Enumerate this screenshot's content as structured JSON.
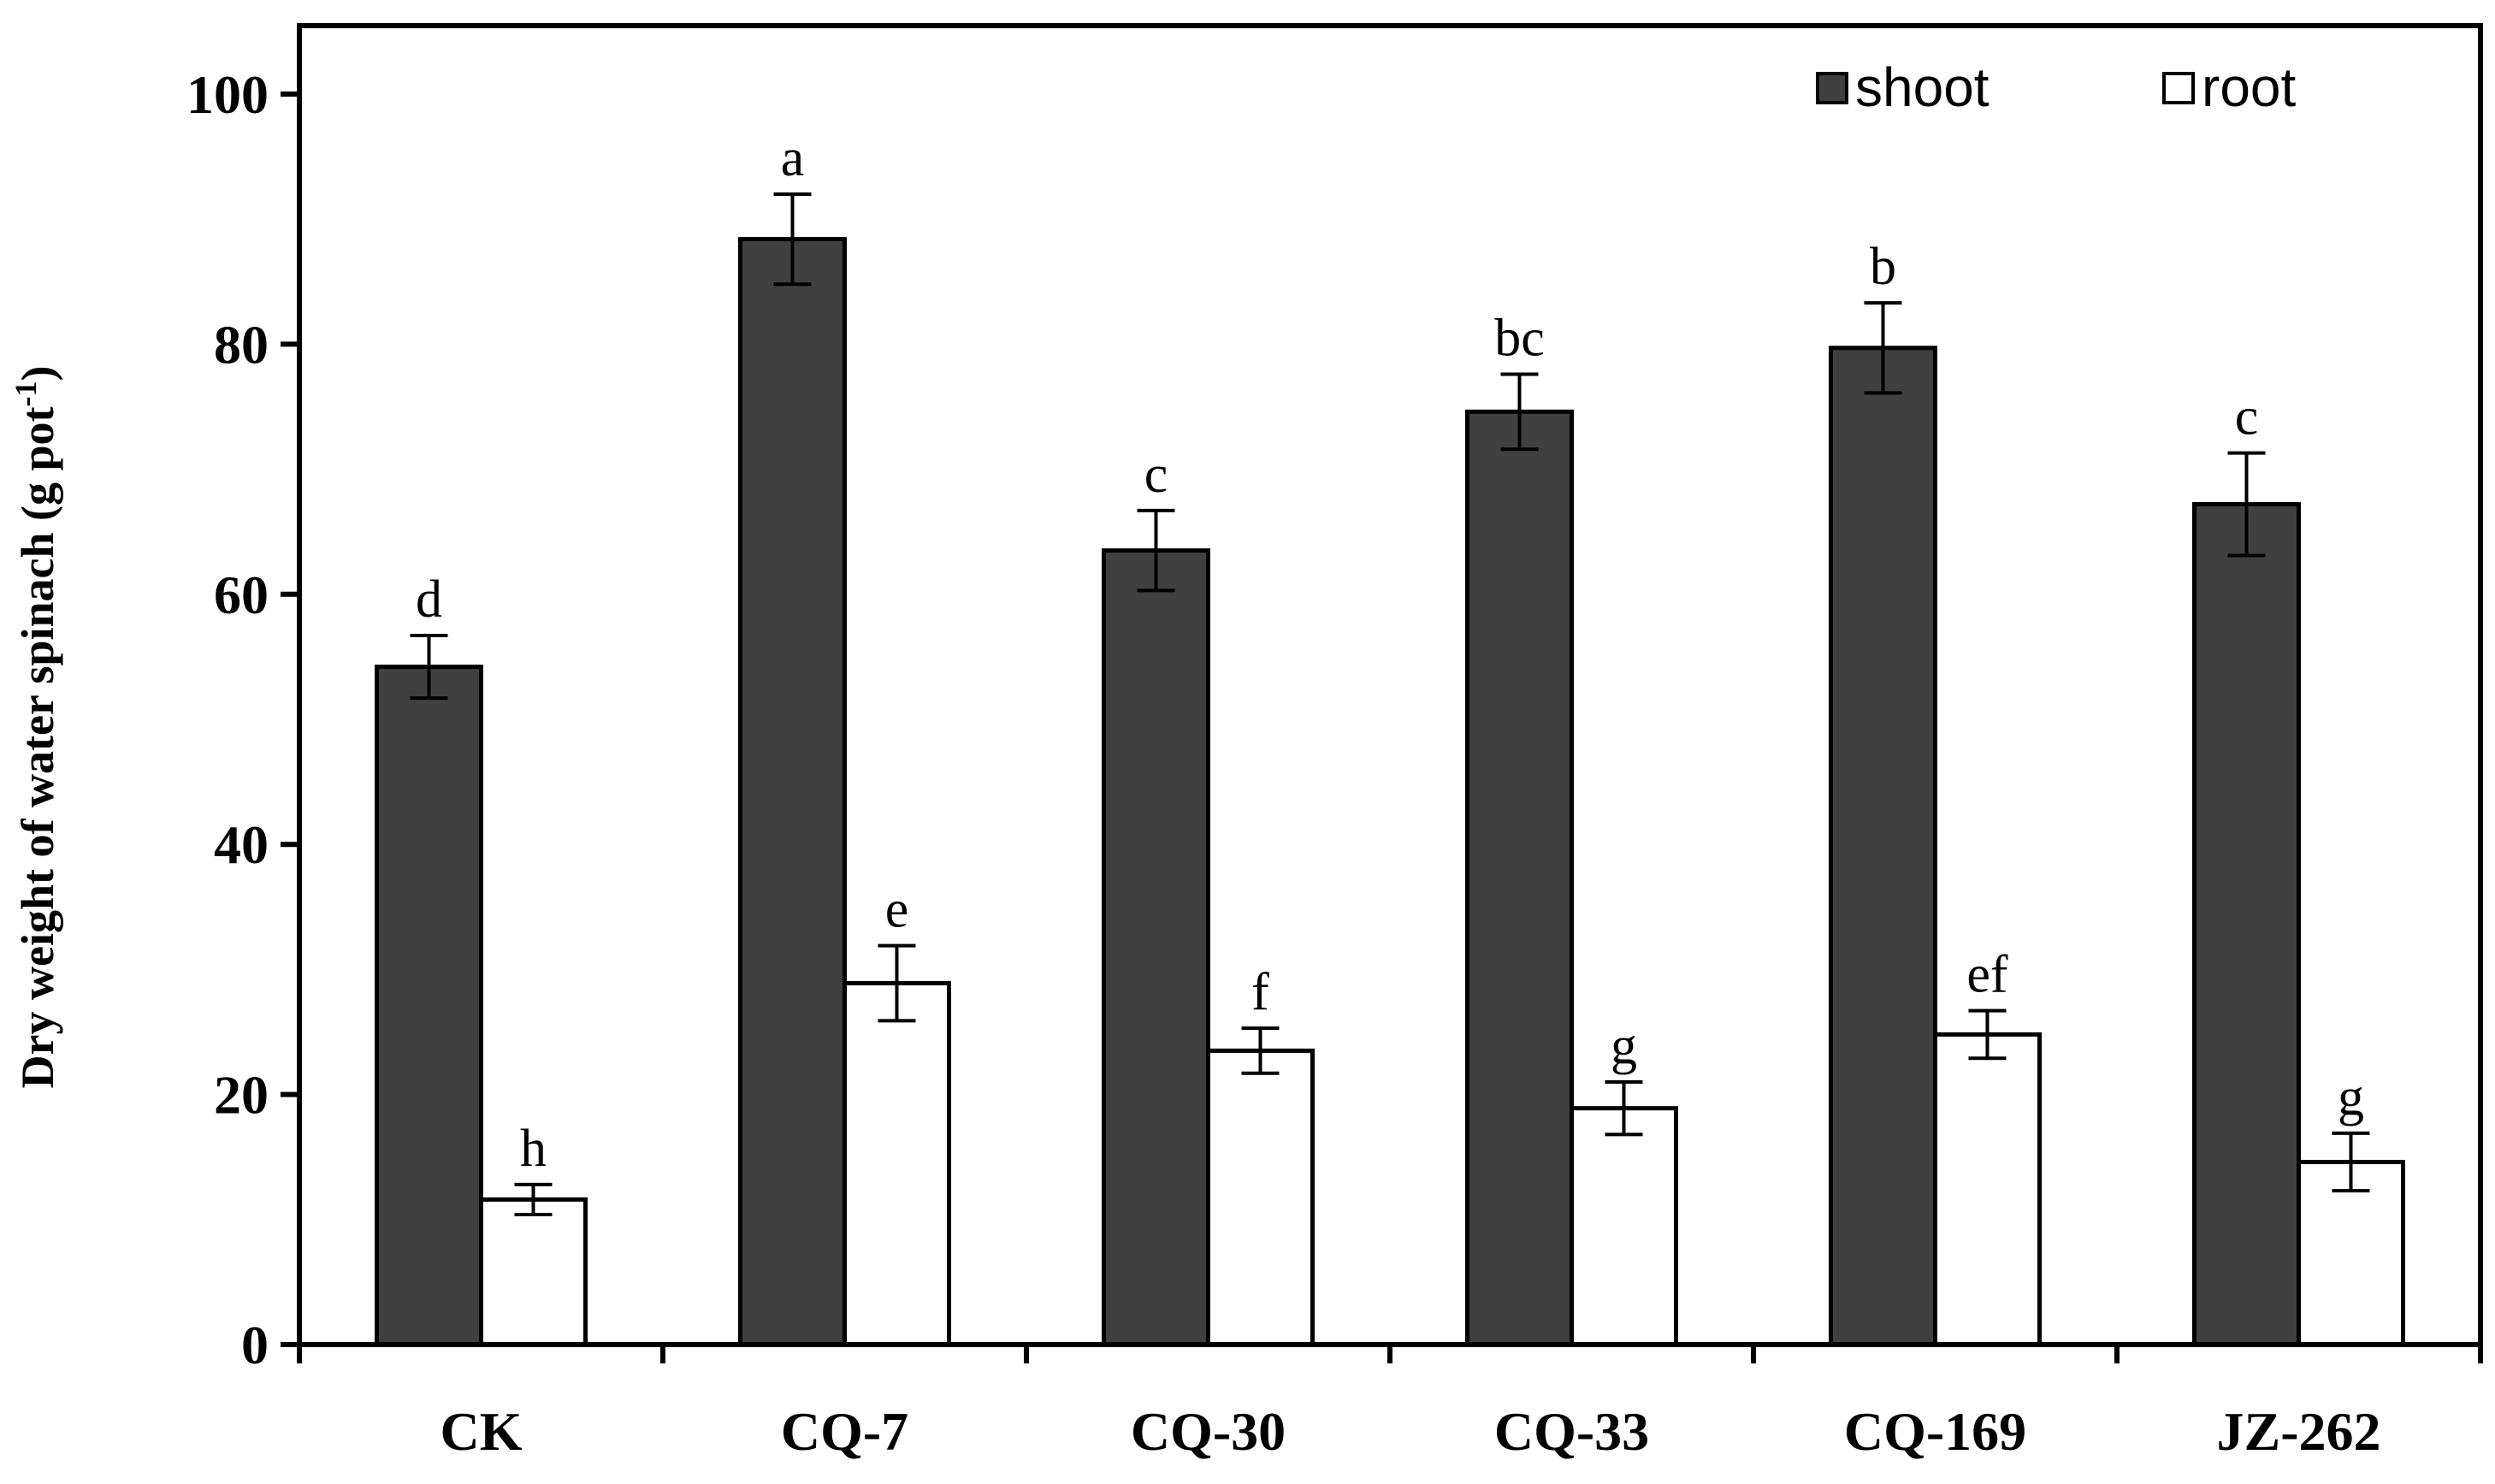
{
  "chart_data": {
    "type": "bar",
    "title": "",
    "xlabel": "",
    "ylabel": "Dry weight of water spinach (g pot",
    "ylabel_superscript": "-1",
    "ylabel_suffix": ")",
    "ylim": [
      0,
      100
    ],
    "yticks": [
      0,
      20,
      40,
      60,
      80,
      100
    ],
    "ytick_labels": [
      "0",
      "20",
      "40",
      "60",
      "80",
      "100"
    ],
    "categories": [
      "CK",
      "CQ-7",
      "CQ-30",
      "CQ-33",
      "CQ-169",
      "JZ-262"
    ],
    "legend_position": "top-right",
    "series": [
      {
        "name": "shoot",
        "color": "#404040",
        "values": [
          54.2,
          88.4,
          63.5,
          74.6,
          79.7,
          67.2
        ],
        "errors": [
          2.5,
          3.6,
          3.2,
          3.0,
          3.6,
          4.1
        ],
        "letters": [
          "d",
          "a",
          "c",
          "bc",
          "b",
          "c"
        ]
      },
      {
        "name": "root",
        "color": "#ffffff",
        "values": [
          11.6,
          28.9,
          23.5,
          18.9,
          24.8,
          14.6
        ],
        "errors": [
          1.2,
          3.0,
          1.8,
          2.1,
          1.9,
          2.3
        ],
        "letters": [
          "h",
          "e",
          "f",
          "g",
          "ef",
          "g"
        ]
      }
    ]
  }
}
